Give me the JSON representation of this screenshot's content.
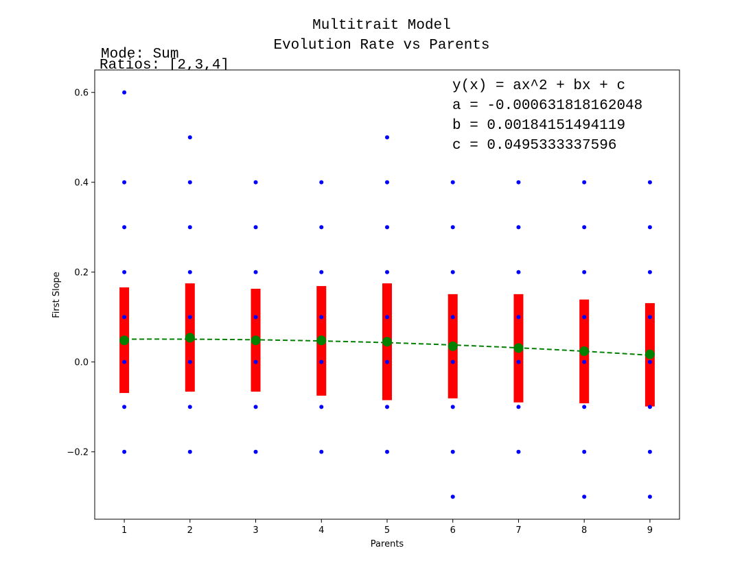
{
  "chart_data": {
    "type": "scatter",
    "title_lines": [
      "Multitrait Model",
      "Evolution Rate vs Parents"
    ],
    "annotations": [
      "Mode: Sum",
      "Ratios: [2,3,4]"
    ],
    "equation_lines": [
      "y(x) = ax^2 + bx + c",
      "a = -0.000631818162048",
      "b = 0.00184151494119",
      "c = 0.0495333337596"
    ],
    "xlabel": "Parents",
    "ylabel": "First Slope",
    "xlim": [
      0.55,
      9.45
    ],
    "ylim": [
      -0.35,
      0.65
    ],
    "x_ticks": [
      1,
      2,
      3,
      4,
      5,
      6,
      7,
      8,
      9
    ],
    "y_ticks": [
      -0.2,
      0.0,
      0.2,
      0.4,
      0.6
    ],
    "y_tick_labels": [
      "−0.2",
      "0.0",
      "0.2",
      "0.4",
      "0.6"
    ],
    "grid": false,
    "colors": {
      "points": "#0000ff",
      "std_bars": "#ff0000",
      "means": "#008000",
      "fit_line": "#008000"
    },
    "raw_points": [
      {
        "x": 1,
        "y": [
          0.6,
          0.4,
          0.3,
          0.2,
          0.1,
          0.0,
          -0.1,
          -0.2
        ]
      },
      {
        "x": 2,
        "y": [
          0.5,
          0.4,
          0.3,
          0.2,
          0.1,
          0.0,
          -0.1,
          -0.2
        ]
      },
      {
        "x": 3,
        "y": [
          0.4,
          0.3,
          0.2,
          0.1,
          0.0,
          -0.1,
          -0.2
        ]
      },
      {
        "x": 4,
        "y": [
          0.4,
          0.3,
          0.2,
          0.1,
          0.0,
          -0.1,
          -0.2
        ]
      },
      {
        "x": 5,
        "y": [
          0.5,
          0.4,
          0.3,
          0.2,
          0.1,
          0.0,
          -0.1,
          -0.2
        ]
      },
      {
        "x": 6,
        "y": [
          0.4,
          0.3,
          0.2,
          0.1,
          0.0,
          -0.1,
          -0.2,
          -0.3
        ]
      },
      {
        "x": 7,
        "y": [
          0.4,
          0.3,
          0.2,
          0.1,
          0.0,
          -0.1,
          -0.2
        ]
      },
      {
        "x": 8,
        "y": [
          0.4,
          0.3,
          0.2,
          0.1,
          0.0,
          -0.1,
          -0.2,
          -0.3
        ]
      },
      {
        "x": 9,
        "y": [
          0.4,
          0.3,
          0.2,
          0.1,
          0.0,
          -0.1,
          -0.2,
          -0.3
        ]
      }
    ],
    "means": [
      {
        "x": 1,
        "y": 0.048
      },
      {
        "x": 2,
        "y": 0.054
      },
      {
        "x": 3,
        "y": 0.048
      },
      {
        "x": 4,
        "y": 0.048
      },
      {
        "x": 5,
        "y": 0.045
      },
      {
        "x": 6,
        "y": 0.035
      },
      {
        "x": 7,
        "y": 0.031
      },
      {
        "x": 8,
        "y": 0.024
      },
      {
        "x": 9,
        "y": 0.017
      }
    ],
    "std_ranges": [
      {
        "x": 1,
        "low": -0.069,
        "high": 0.166
      },
      {
        "x": 2,
        "low": -0.066,
        "high": 0.175
      },
      {
        "x": 3,
        "low": -0.066,
        "high": 0.163
      },
      {
        "x": 4,
        "low": -0.075,
        "high": 0.169
      },
      {
        "x": 5,
        "low": -0.085,
        "high": 0.175
      },
      {
        "x": 6,
        "low": -0.081,
        "high": 0.151
      },
      {
        "x": 7,
        "low": -0.09,
        "high": 0.151
      },
      {
        "x": 8,
        "low": -0.092,
        "high": 0.139
      },
      {
        "x": 9,
        "low": -0.099,
        "high": 0.131
      }
    ],
    "fit": {
      "a": -0.000631818162048,
      "b": 0.00184151494119,
      "c": 0.0495333337596
    }
  }
}
